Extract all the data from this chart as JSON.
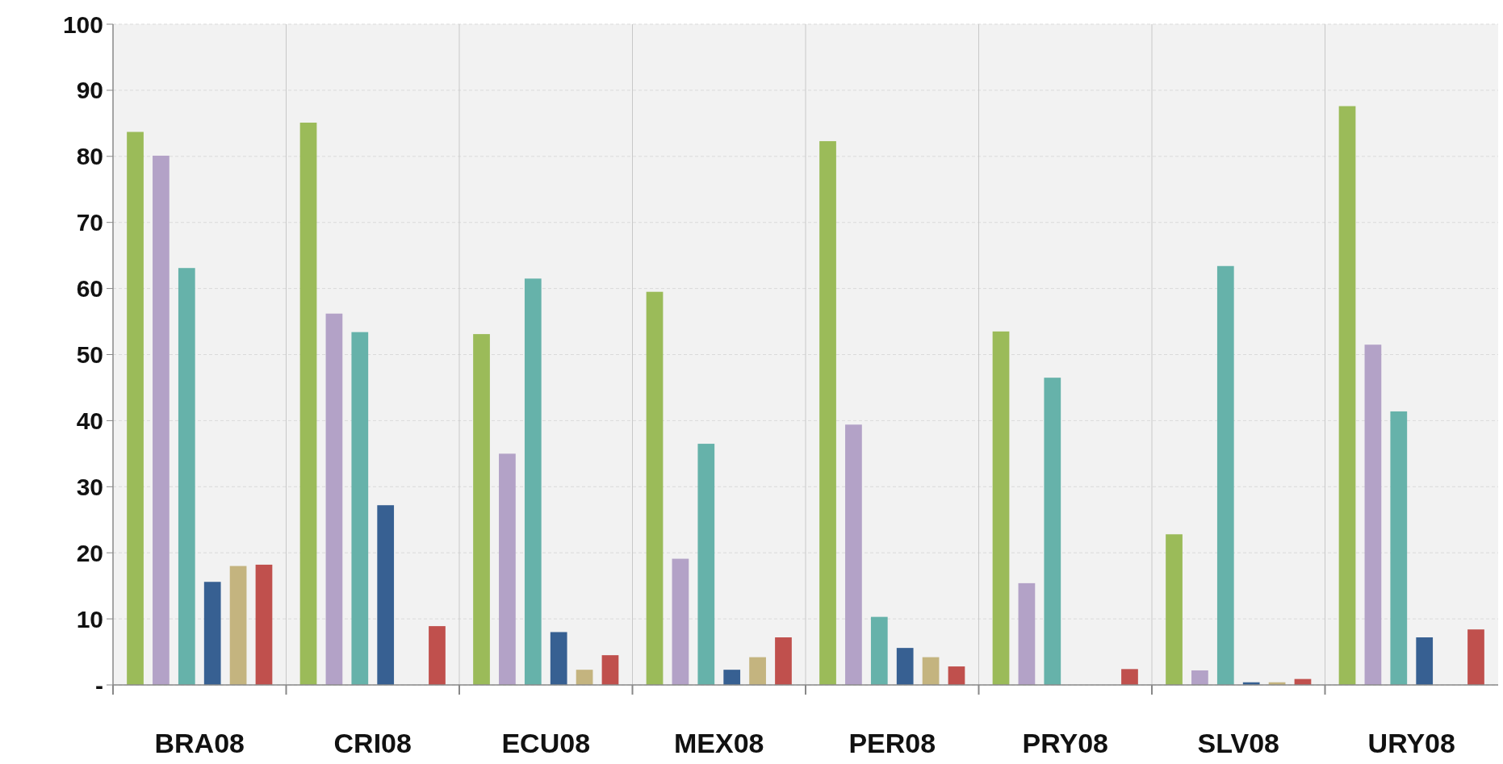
{
  "chart_data": {
    "type": "bar",
    "categories": [
      "BRA08",
      "CRI08",
      "ECU08",
      "MEX08",
      "PER08",
      "PRY08",
      "SLV08",
      "URY08"
    ],
    "series": [
      {
        "color": "#9bbb59",
        "values": [
          83.7,
          85.1,
          53.1,
          59.5,
          82.3,
          53.5,
          22.8,
          87.6
        ]
      },
      {
        "color": "#b3a2c7",
        "values": [
          80.1,
          56.2,
          35,
          19.1,
          39.4,
          15.4,
          2.2,
          51.5
        ]
      },
      {
        "color": "#66b2aa",
        "values": [
          63.1,
          53.4,
          61.5,
          36.5,
          10.3,
          46.5,
          63.4,
          41.4
        ]
      },
      {
        "color": "#376092",
        "values": [
          15.6,
          27.2,
          8,
          2.3,
          5.6,
          null,
          0.4,
          7.2
        ]
      },
      {
        "color": "#c4b47f",
        "values": [
          18,
          null,
          2.3,
          4.2,
          4.2,
          null,
          0.4,
          null
        ]
      },
      {
        "color": "#c0504d",
        "values": [
          18.2,
          8.9,
          4.5,
          7.2,
          2.8,
          2.4,
          0.9,
          8.4
        ]
      }
    ],
    "ylim": [
      0,
      100
    ],
    "yticks": [
      {
        "value": 0,
        "label": "-"
      },
      10,
      20,
      30,
      40,
      50,
      60,
      70,
      80,
      90,
      100
    ],
    "grid": true
  }
}
